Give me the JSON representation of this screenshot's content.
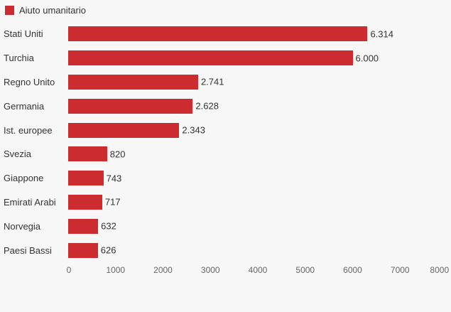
{
  "colors": {
    "background": "#f7f7f7",
    "bar": "#cc2b30",
    "label_text": "#333333",
    "axis_text": "#666666"
  },
  "legend": {
    "label": "Aiuto umanitario",
    "swatch_color": "#cc2b30",
    "position": "top-left"
  },
  "chart_data": {
    "type": "bar",
    "orientation": "horizontal",
    "title": "",
    "categories": [
      "Stati Uniti",
      "Turchia",
      "Regno Unito",
      "Germania",
      "Ist. europee",
      "Svezia",
      "Giappone",
      "Emirati Arabi",
      "Norvegia",
      "Paesi Bassi"
    ],
    "series": [
      {
        "name": "Aiuto umanitario",
        "color": "#cc2b30",
        "values": [
          6314,
          6000,
          2741,
          2628,
          2343,
          820,
          743,
          717,
          632,
          626
        ],
        "value_labels": [
          "6.314",
          "6.000",
          "2.741",
          "2.628",
          "2.343",
          "820",
          "743",
          "717",
          "632",
          "626"
        ]
      }
    ],
    "xlabel": "",
    "ylabel": "",
    "xlim": [
      0,
      8000
    ],
    "x_ticks": [
      0,
      1000,
      2000,
      3000,
      4000,
      5000,
      6000,
      7000,
      8000
    ],
    "x_tick_labels": [
      "0",
      "1000",
      "2000",
      "3000",
      "4000",
      "5000",
      "6000",
      "7000",
      "8000"
    ],
    "grid": false,
    "legend_position": "top-left",
    "data_labels": "outside-end"
  }
}
